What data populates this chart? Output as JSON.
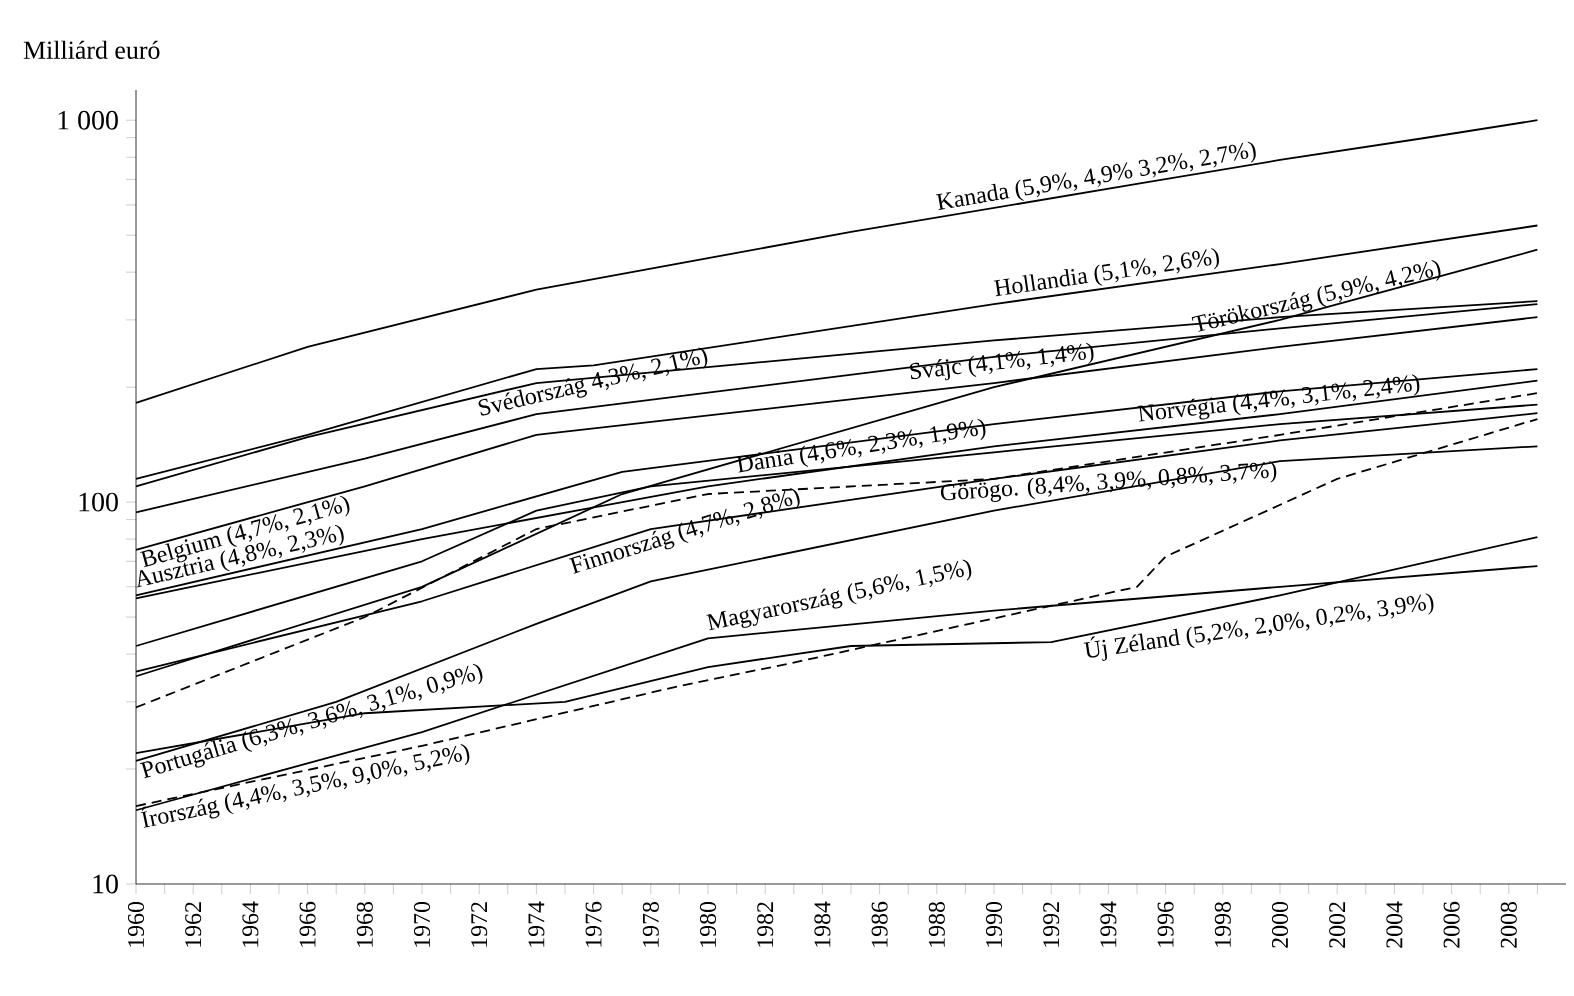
{
  "chart_data": {
    "type": "line",
    "ylabel": "Milliárd euró",
    "log": true,
    "marker": "none",
    "xlim": [
      1960,
      2010
    ],
    "ylim": [
      10,
      1200
    ],
    "xticks": [
      1960,
      {
        "value": 1961,
        "label": null
      },
      1962,
      {
        "value": 1963,
        "label": null
      },
      1964,
      {
        "value": 1965,
        "label": null
      },
      1966,
      {
        "value": 1967,
        "label": null
      },
      1968,
      {
        "value": 1969,
        "label": null
      },
      1970,
      {
        "value": 1971,
        "label": null
      },
      1972,
      {
        "value": 1973,
        "label": null
      },
      1974,
      {
        "value": 1975,
        "label": null
      },
      1976,
      {
        "value": 1977,
        "label": null
      },
      1978,
      {
        "value": 1979,
        "label": null
      },
      1980,
      {
        "value": 1981,
        "label": null
      },
      1982,
      {
        "value": 1983,
        "label": null
      },
      1984,
      {
        "value": 1985,
        "label": null
      },
      1986,
      {
        "value": 1987,
        "label": null
      },
      1988,
      {
        "value": 1989,
        "label": null
      },
      1990,
      {
        "value": 1991,
        "label": null
      },
      1992,
      {
        "value": 1993,
        "label": null
      },
      1994,
      {
        "value": 1995,
        "label": null
      },
      1996,
      {
        "value": 1997,
        "label": null
      },
      1998,
      {
        "value": 1999,
        "label": null
      },
      2000,
      {
        "value": 2001,
        "label": null
      },
      2002,
      {
        "value": 2003,
        "label": null
      },
      2004,
      {
        "value": 2005,
        "label": null
      },
      2006,
      {
        "value": 2007,
        "label": null
      },
      2008,
      {
        "value": 2009,
        "label": null
      }
    ],
    "yticks": [
      10,
      {
        "value": 20,
        "label": null
      },
      {
        "value": 30,
        "label": null
      },
      {
        "value": 40,
        "label": null
      },
      {
        "value": 50,
        "label": null
      },
      {
        "value": 60,
        "label": null
      },
      {
        "value": 70,
        "label": null
      },
      {
        "value": 80,
        "label": null
      },
      {
        "value": 90,
        "label": null
      },
      100,
      {
        "value": 200,
        "label": null
      },
      {
        "value": 300,
        "label": null
      },
      {
        "value": 400,
        "label": null
      },
      {
        "value": 500,
        "label": null
      },
      {
        "value": 600,
        "label": null
      },
      {
        "value": 700,
        "label": null
      },
      {
        "value": 800,
        "label": null
      },
      {
        "value": 900,
        "label": null
      },
      {
        "value": 1000,
        "label": "1 000"
      }
    ],
    "series": [
      {
        "color": "#000000",
        "line_style": "solid",
        "x": [
          1960,
          1966,
          1974,
          1985,
          1995,
          2000,
          2005,
          2009
        ],
        "values": [
          182,
          255,
          360,
          510,
          681,
          787,
          897,
          1000
        ]
      },
      {
        "color": "#000000",
        "line_style": "solid",
        "x": [
          1960,
          1966,
          1974,
          1976,
          1990,
          2000,
          2009
        ],
        "values": [
          115,
          150,
          223,
          228,
          330,
          420,
          530
        ]
      },
      {
        "color": "#000000",
        "line_style": "solid",
        "x": [
          1960,
          1966,
          1974,
          1990,
          2000,
          2009
        ],
        "values": [
          110,
          148,
          205,
          265,
          305,
          336
        ]
      },
      {
        "color": "#000000",
        "line_style": "solid",
        "x": [
          1960,
          1968,
          1974,
          1990,
          2000,
          2009
        ],
        "values": [
          94,
          130,
          170,
          240,
          285,
          330
        ]
      },
      {
        "color": "#000000",
        "line_style": "solid",
        "x": [
          1960,
          1968,
          1974,
          1990,
          2000,
          2009
        ],
        "values": [
          75,
          110,
          150,
          205,
          255,
          305
        ]
      },
      {
        "color": "#000000",
        "line_style": "solid",
        "x": [
          1960,
          1970,
          1977,
          1990,
          2000,
          2009
        ],
        "values": [
          35,
          60,
          105,
          200,
          300,
          458
        ]
      },
      {
        "color": "#000000",
        "line_style": "solid",
        "x": [
          1960,
          1970,
          1977,
          1990,
          2000,
          2009
        ],
        "values": [
          57,
          85,
          120,
          160,
          195,
          223
        ]
      },
      {
        "color": "#000000",
        "line_style": "solid",
        "x": [
          1960,
          1970,
          1980,
          1990,
          2000,
          2009
        ],
        "values": [
          56,
          80,
          110,
          140,
          170,
          208
        ]
      },
      {
        "color": "#000000",
        "line_style": "solid",
        "x": [
          1960,
          1970,
          1974,
          1978,
          1990,
          2000,
          2009
        ],
        "values": [
          42,
          70,
          95,
          110,
          135,
          160,
          180
        ]
      },
      {
        "color": "#000000",
        "line_style": "dashed",
        "x": [
          1960,
          1968,
          1974,
          1980,
          1990,
          2000,
          2009
        ],
        "values": [
          29,
          50,
          85,
          105,
          115,
          150,
          193
        ]
      },
      {
        "color": "#000000",
        "line_style": "solid",
        "x": [
          1960,
          1970,
          1978,
          1990,
          2000,
          2009
        ],
        "values": [
          36,
          55,
          85,
          115,
          145,
          171
        ]
      },
      {
        "color": "#000000",
        "line_style": "solid",
        "x": [
          1960,
          1967,
          1974,
          1978,
          1990,
          2000,
          2009
        ],
        "values": [
          21,
          30,
          48,
          62,
          95,
          128,
          140
        ]
      },
      {
        "color": "#000000",
        "line_style": "solid",
        "x": [
          1960,
          1968,
          1975,
          1980,
          1985,
          1992,
          2000,
          2009
        ],
        "values": [
          22,
          28,
          30,
          37,
          42,
          43,
          57,
          81
        ]
      },
      {
        "color": "#000000",
        "line_style": "solid",
        "x": [
          1960,
          1970,
          1980,
          1990,
          2000,
          2009
        ],
        "values": [
          15.6,
          25,
          44,
          52,
          60,
          68
        ]
      },
      {
        "color": "#000000",
        "line_style": "dashed",
        "x": [
          1960,
          1970,
          1979,
          1983,
          1995,
          1996,
          2002,
          2009
        ],
        "values": [
          16,
          23,
          33,
          38,
          60,
          72,
          115,
          165
        ]
      }
    ],
    "annotations": [
      {
        "text": "Kanada (5,9%, 4,9% 3,2%, 2,7%)",
        "x": 1988,
        "y": 555
      },
      {
        "text": "Hollandia (5,1%, 2,6%)",
        "x": 1990,
        "y": 330
      },
      {
        "text": "Svájc (4,1%, 1,4%)",
        "x": 1987,
        "y": 200
      },
      {
        "text": "Törökország (5,9%, 4,2%)",
        "x": 1997,
        "y": 265
      },
      {
        "text": "Svédország 4,3%, 2,1%)",
        "x": 1972,
        "y": 160
      },
      {
        "text": "Belgium (4,7%, 2,1%)",
        "x": 1960,
        "y": 75
      },
      {
        "text": "Ausztria (4,8%, 2,3%)",
        "x": 1960,
        "y": 57
      },
      {
        "text": "Dánia (4,6%, 2,3%, 1,9%)",
        "x": 1981,
        "y": 114
      },
      {
        "text": "Norvégia (4,4%, 3,1%, 2,4%)",
        "x": 1995,
        "y": 155
      },
      {
        "text": "Görögo. (8,4%, 3,9%, 0,8%, 3,7%)",
        "x": 1988,
        "y": 113
      },
      {
        "text": "Finnország (4,7%, 2,8%)",
        "x": 1975,
        "y": 72
      },
      {
        "text": "Portugália (6,3%, 3,6%, 3,1%, 0,9%)",
        "x": 1960,
        "y": 21
      },
      {
        "text": "Magyarország (5,6%, 1,5%)",
        "x": 1980,
        "y": 44
      },
      {
        "text": "Új Zéland (5,2%, 2,0%, 0,2%, 3,9%)",
        "x": 1993,
        "y": 44.6
      },
      {
        "text": "Írország (4,4%, 3,5%, 9,0%, 5,2%)",
        "x": 1960,
        "y": 16
      }
    ]
  }
}
